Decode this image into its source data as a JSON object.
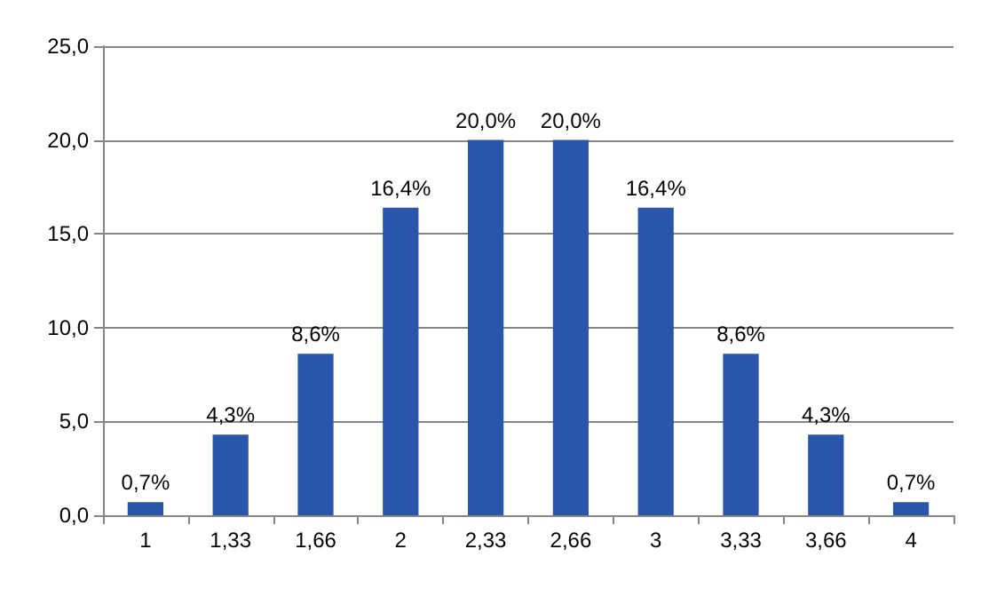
{
  "chart_data": {
    "type": "bar",
    "categories": [
      "1",
      "1,33",
      "1,66",
      "2",
      "2,33",
      "2,66",
      "3",
      "3,33",
      "3,66",
      "4"
    ],
    "values": [
      0.7,
      4.3,
      8.6,
      16.4,
      20.0,
      20.0,
      16.4,
      8.6,
      4.3,
      0.7
    ],
    "value_labels": [
      "0,7%",
      "4,3%",
      "8,6%",
      "16,4%",
      "20,0%",
      "20,0%",
      "16,4%",
      "8,6%",
      "4,3%",
      "0,7%"
    ],
    "color": "#2955ab",
    "ylim": [
      0,
      25
    ],
    "yticks": [
      {
        "value": 0,
        "label": "0,0"
      },
      {
        "value": 5,
        "label": "5,0"
      },
      {
        "value": 10,
        "label": "10,0"
      },
      {
        "value": 15,
        "label": "15,0"
      },
      {
        "value": 20,
        "label": "20,0"
      },
      {
        "value": 25,
        "label": "25,0"
      }
    ],
    "grid": "y"
  }
}
